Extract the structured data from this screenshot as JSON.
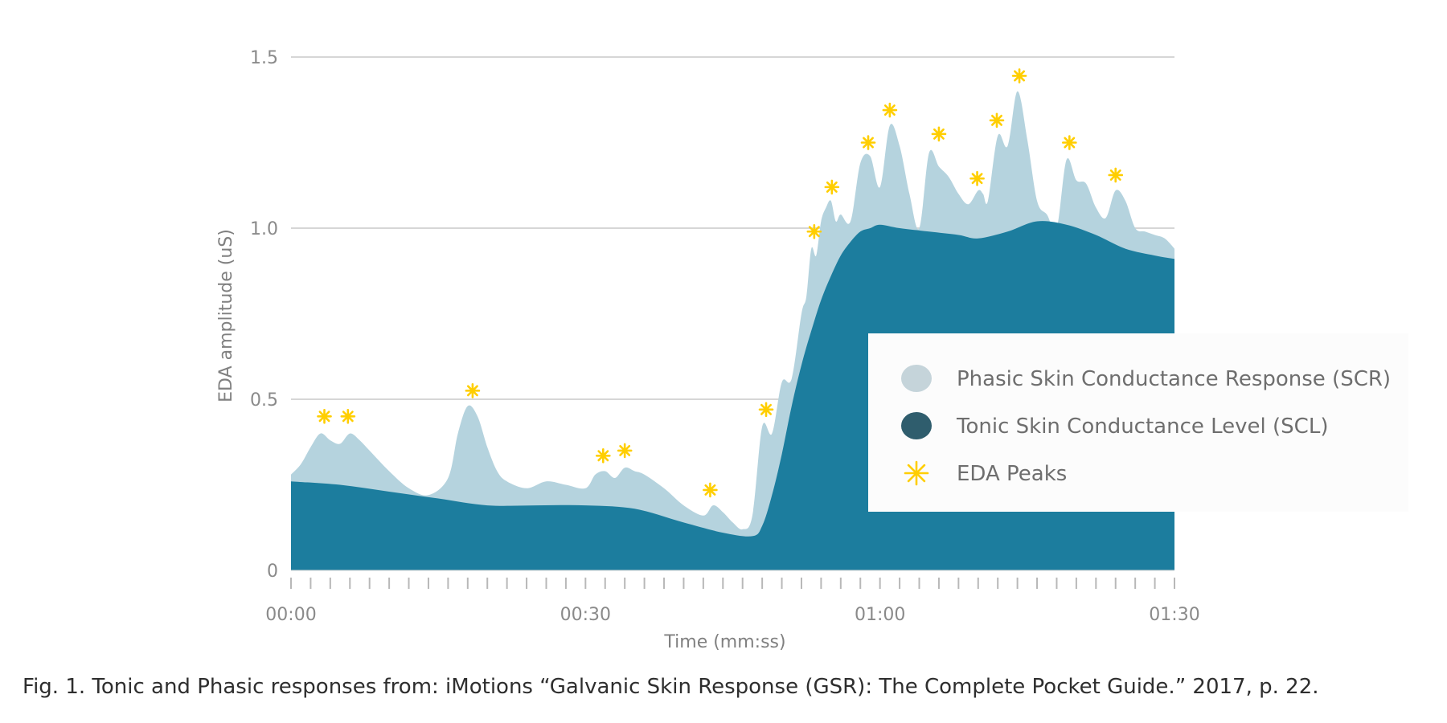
{
  "chart_data": {
    "type": "area",
    "title": "",
    "xlabel": "Time (mm:ss)",
    "ylabel": "EDA amplitude (uS)",
    "xlim": [
      0,
      90
    ],
    "ylim": [
      0,
      1.5
    ],
    "x_ticks": [
      {
        "value": 0,
        "label": "00:00"
      },
      {
        "value": 30,
        "label": "00:30"
      },
      {
        "value": 60,
        "label": "01:00"
      },
      {
        "value": 90,
        "label": "01:30"
      }
    ],
    "y_ticks": [
      {
        "value": 0,
        "label": "0"
      },
      {
        "value": 0.5,
        "label": "0.5"
      },
      {
        "value": 1.0,
        "label": "1.0"
      },
      {
        "value": 1.5,
        "label": "1.5"
      }
    ],
    "minor_tick_count": 45,
    "grid": true,
    "legend_position": "right",
    "series": [
      {
        "name": "Phasic Skin Conductance Response (SCR)",
        "color": "#b5d3de",
        "x": [
          0,
          1,
          2,
          3,
          4,
          5,
          6,
          7,
          8,
          10,
          12,
          14,
          16,
          17,
          18,
          19,
          20,
          21,
          22,
          24,
          26,
          28,
          30,
          31,
          32,
          33,
          34,
          35,
          36,
          38,
          40,
          42,
          43,
          44,
          45,
          46,
          47,
          48,
          49,
          50,
          51,
          52,
          52.5,
          53,
          53.5,
          54,
          54.5,
          55,
          55.5,
          56,
          57,
          58,
          59,
          60,
          61,
          62,
          63,
          64,
          65,
          66,
          67,
          68,
          69,
          70,
          70.5,
          71,
          72,
          73,
          74,
          75,
          76,
          77,
          78,
          79,
          80,
          81,
          82,
          83,
          84,
          85,
          86,
          87,
          88,
          89,
          90
        ],
        "y": [
          0.28,
          0.31,
          0.36,
          0.4,
          0.38,
          0.37,
          0.4,
          0.38,
          0.35,
          0.29,
          0.24,
          0.22,
          0.27,
          0.4,
          0.48,
          0.45,
          0.36,
          0.29,
          0.26,
          0.24,
          0.26,
          0.25,
          0.24,
          0.28,
          0.29,
          0.27,
          0.3,
          0.29,
          0.28,
          0.24,
          0.19,
          0.16,
          0.19,
          0.17,
          0.14,
          0.12,
          0.16,
          0.42,
          0.4,
          0.55,
          0.56,
          0.75,
          0.8,
          0.94,
          0.92,
          1.02,
          1.06,
          1.08,
          1.02,
          1.04,
          1.02,
          1.19,
          1.21,
          1.12,
          1.3,
          1.24,
          1.1,
          1.0,
          1.22,
          1.18,
          1.15,
          1.1,
          1.07,
          1.11,
          1.1,
          1.08,
          1.27,
          1.24,
          1.4,
          1.26,
          1.08,
          1.04,
          1.0,
          1.2,
          1.14,
          1.13,
          1.06,
          1.03,
          1.11,
          1.08,
          1.0,
          0.99,
          0.98,
          0.97,
          0.94
        ]
      },
      {
        "name": "Tonic Skin Conductance Level (SCL)",
        "color": "#1c7d9e",
        "x": [
          0,
          5,
          10,
          15,
          20,
          25,
          30,
          35,
          40,
          44,
          47,
          48,
          49,
          50,
          51,
          52,
          53,
          54,
          55,
          56,
          57,
          58,
          59,
          60,
          62,
          65,
          68,
          70,
          73,
          76,
          79,
          82,
          85,
          88,
          90
        ],
        "y": [
          0.26,
          0.25,
          0.23,
          0.21,
          0.19,
          0.19,
          0.19,
          0.18,
          0.14,
          0.11,
          0.1,
          0.13,
          0.22,
          0.34,
          0.48,
          0.6,
          0.7,
          0.79,
          0.86,
          0.92,
          0.96,
          0.99,
          1.0,
          1.01,
          1.0,
          0.99,
          0.98,
          0.97,
          0.99,
          1.02,
          1.01,
          0.98,
          0.94,
          0.92,
          0.91
        ]
      }
    ],
    "peaks": {
      "name": "EDA Peaks",
      "color": "#ffce00",
      "x": [
        3.4,
        5.8,
        18.5,
        31.8,
        34.0,
        42.7,
        48.4,
        53.3,
        55.1,
        58.8,
        61.0,
        66.0,
        69.9,
        71.9,
        74.2,
        79.3,
        84.0
      ],
      "y": [
        0.45,
        0.45,
        0.525,
        0.335,
        0.35,
        0.235,
        0.47,
        0.99,
        1.12,
        1.25,
        1.345,
        1.275,
        1.145,
        1.315,
        1.445,
        1.25,
        1.155
      ]
    }
  },
  "legend": {
    "scr_label": "Phasic Skin Conductance Response (SCR)",
    "scl_label": "Tonic Skin Conductance Level (SCL)",
    "peaks_label": "EDA Peaks",
    "scr_swatch_color": "#c5d4da",
    "scl_swatch_color": "#2f5d6d",
    "peaks_color": "#ffce00"
  },
  "caption": "Fig. 1. Tonic and Phasic responses from: iMotions “Galvanic Skin Response (GSR): The Complete Pocket Guide.” 2017, p. 22."
}
